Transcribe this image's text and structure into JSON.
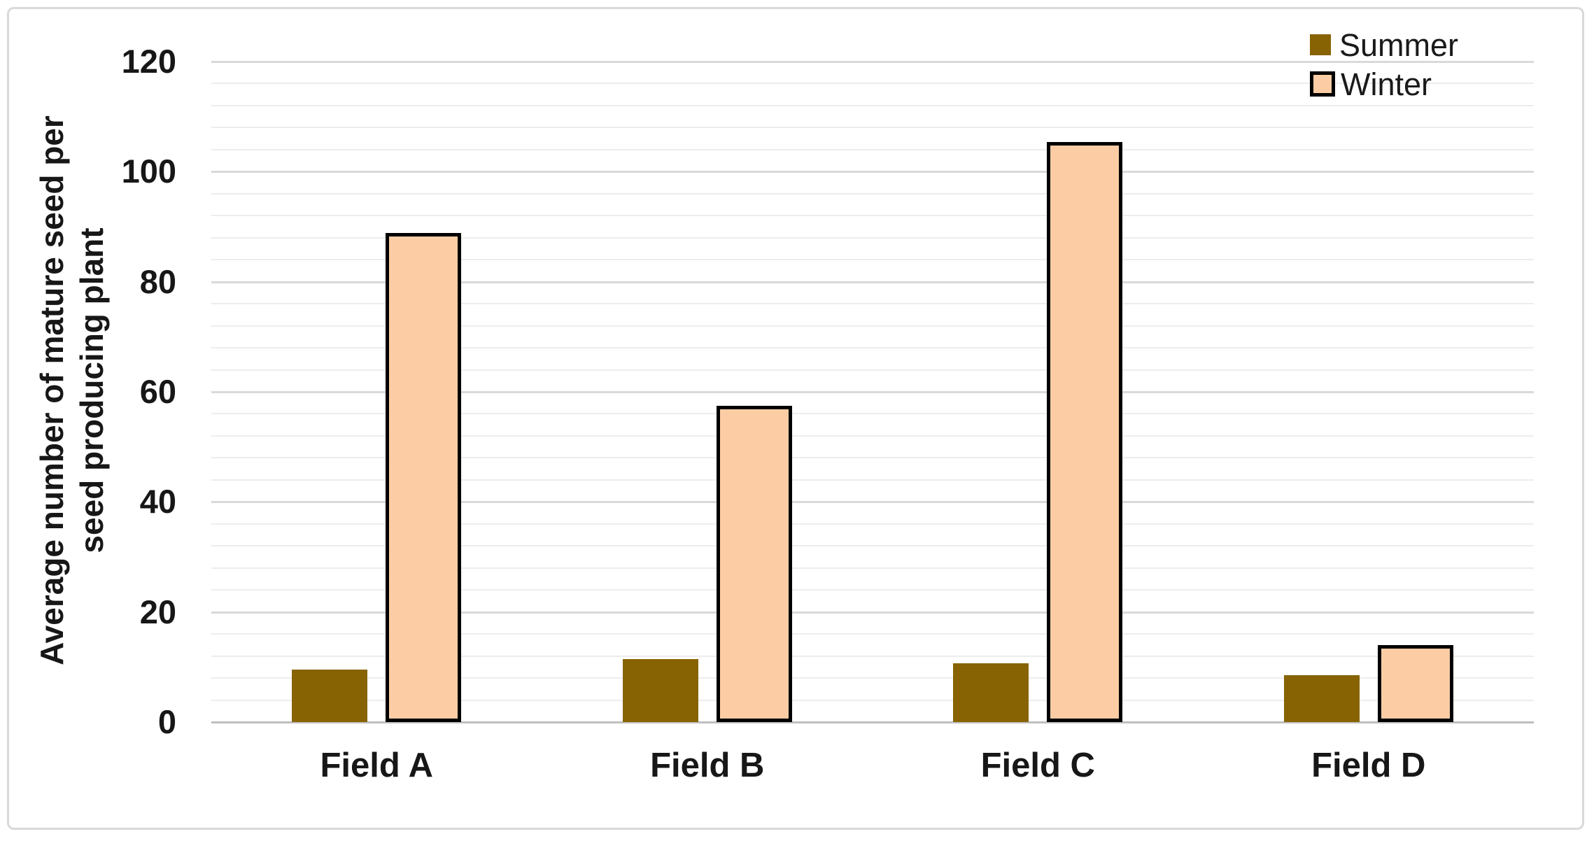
{
  "chart_data": {
    "type": "bar",
    "title": "",
    "categories": [
      "Field A",
      "Field B",
      "Field C",
      "Field D"
    ],
    "series": [
      {
        "name": "Summer",
        "color": "#876303",
        "border_color": null,
        "values": [
          9.5,
          11.4,
          10.7,
          8.5
        ]
      },
      {
        "name": "Winter",
        "color": "#FCCDA5",
        "border_color": "#000000",
        "values": [
          88.8,
          57.4,
          105.4,
          14
        ]
      }
    ],
    "xlabel": "",
    "ylabel": "Average number of mature seed per seed producing plant",
    "ylabel_lines": [
      "Average number of mature seed per",
      "seed producing plant"
    ],
    "ylim": [
      0,
      120
    ],
    "y_major_tick": 20,
    "y_minor_gridline_step": 4,
    "y_tick_labels": [
      "0",
      "20",
      "40",
      "60",
      "80",
      "100",
      "120"
    ],
    "grid": "horizontal major and minor gridlines",
    "legend": {
      "position": "top-right",
      "entries": [
        "Summer",
        "Winter"
      ]
    },
    "colors": {
      "summer_fill": "#876303",
      "winter_fill": "#FCCDA5",
      "winter_border": "#000000",
      "major_gridline": "#D9D9D9",
      "minor_gridline": "#EDEDED",
      "axis_line": "#BFBFBF",
      "text": "#1A1A1A",
      "chart_border": "#D9D9D9",
      "background": "#FFFFFF"
    }
  }
}
